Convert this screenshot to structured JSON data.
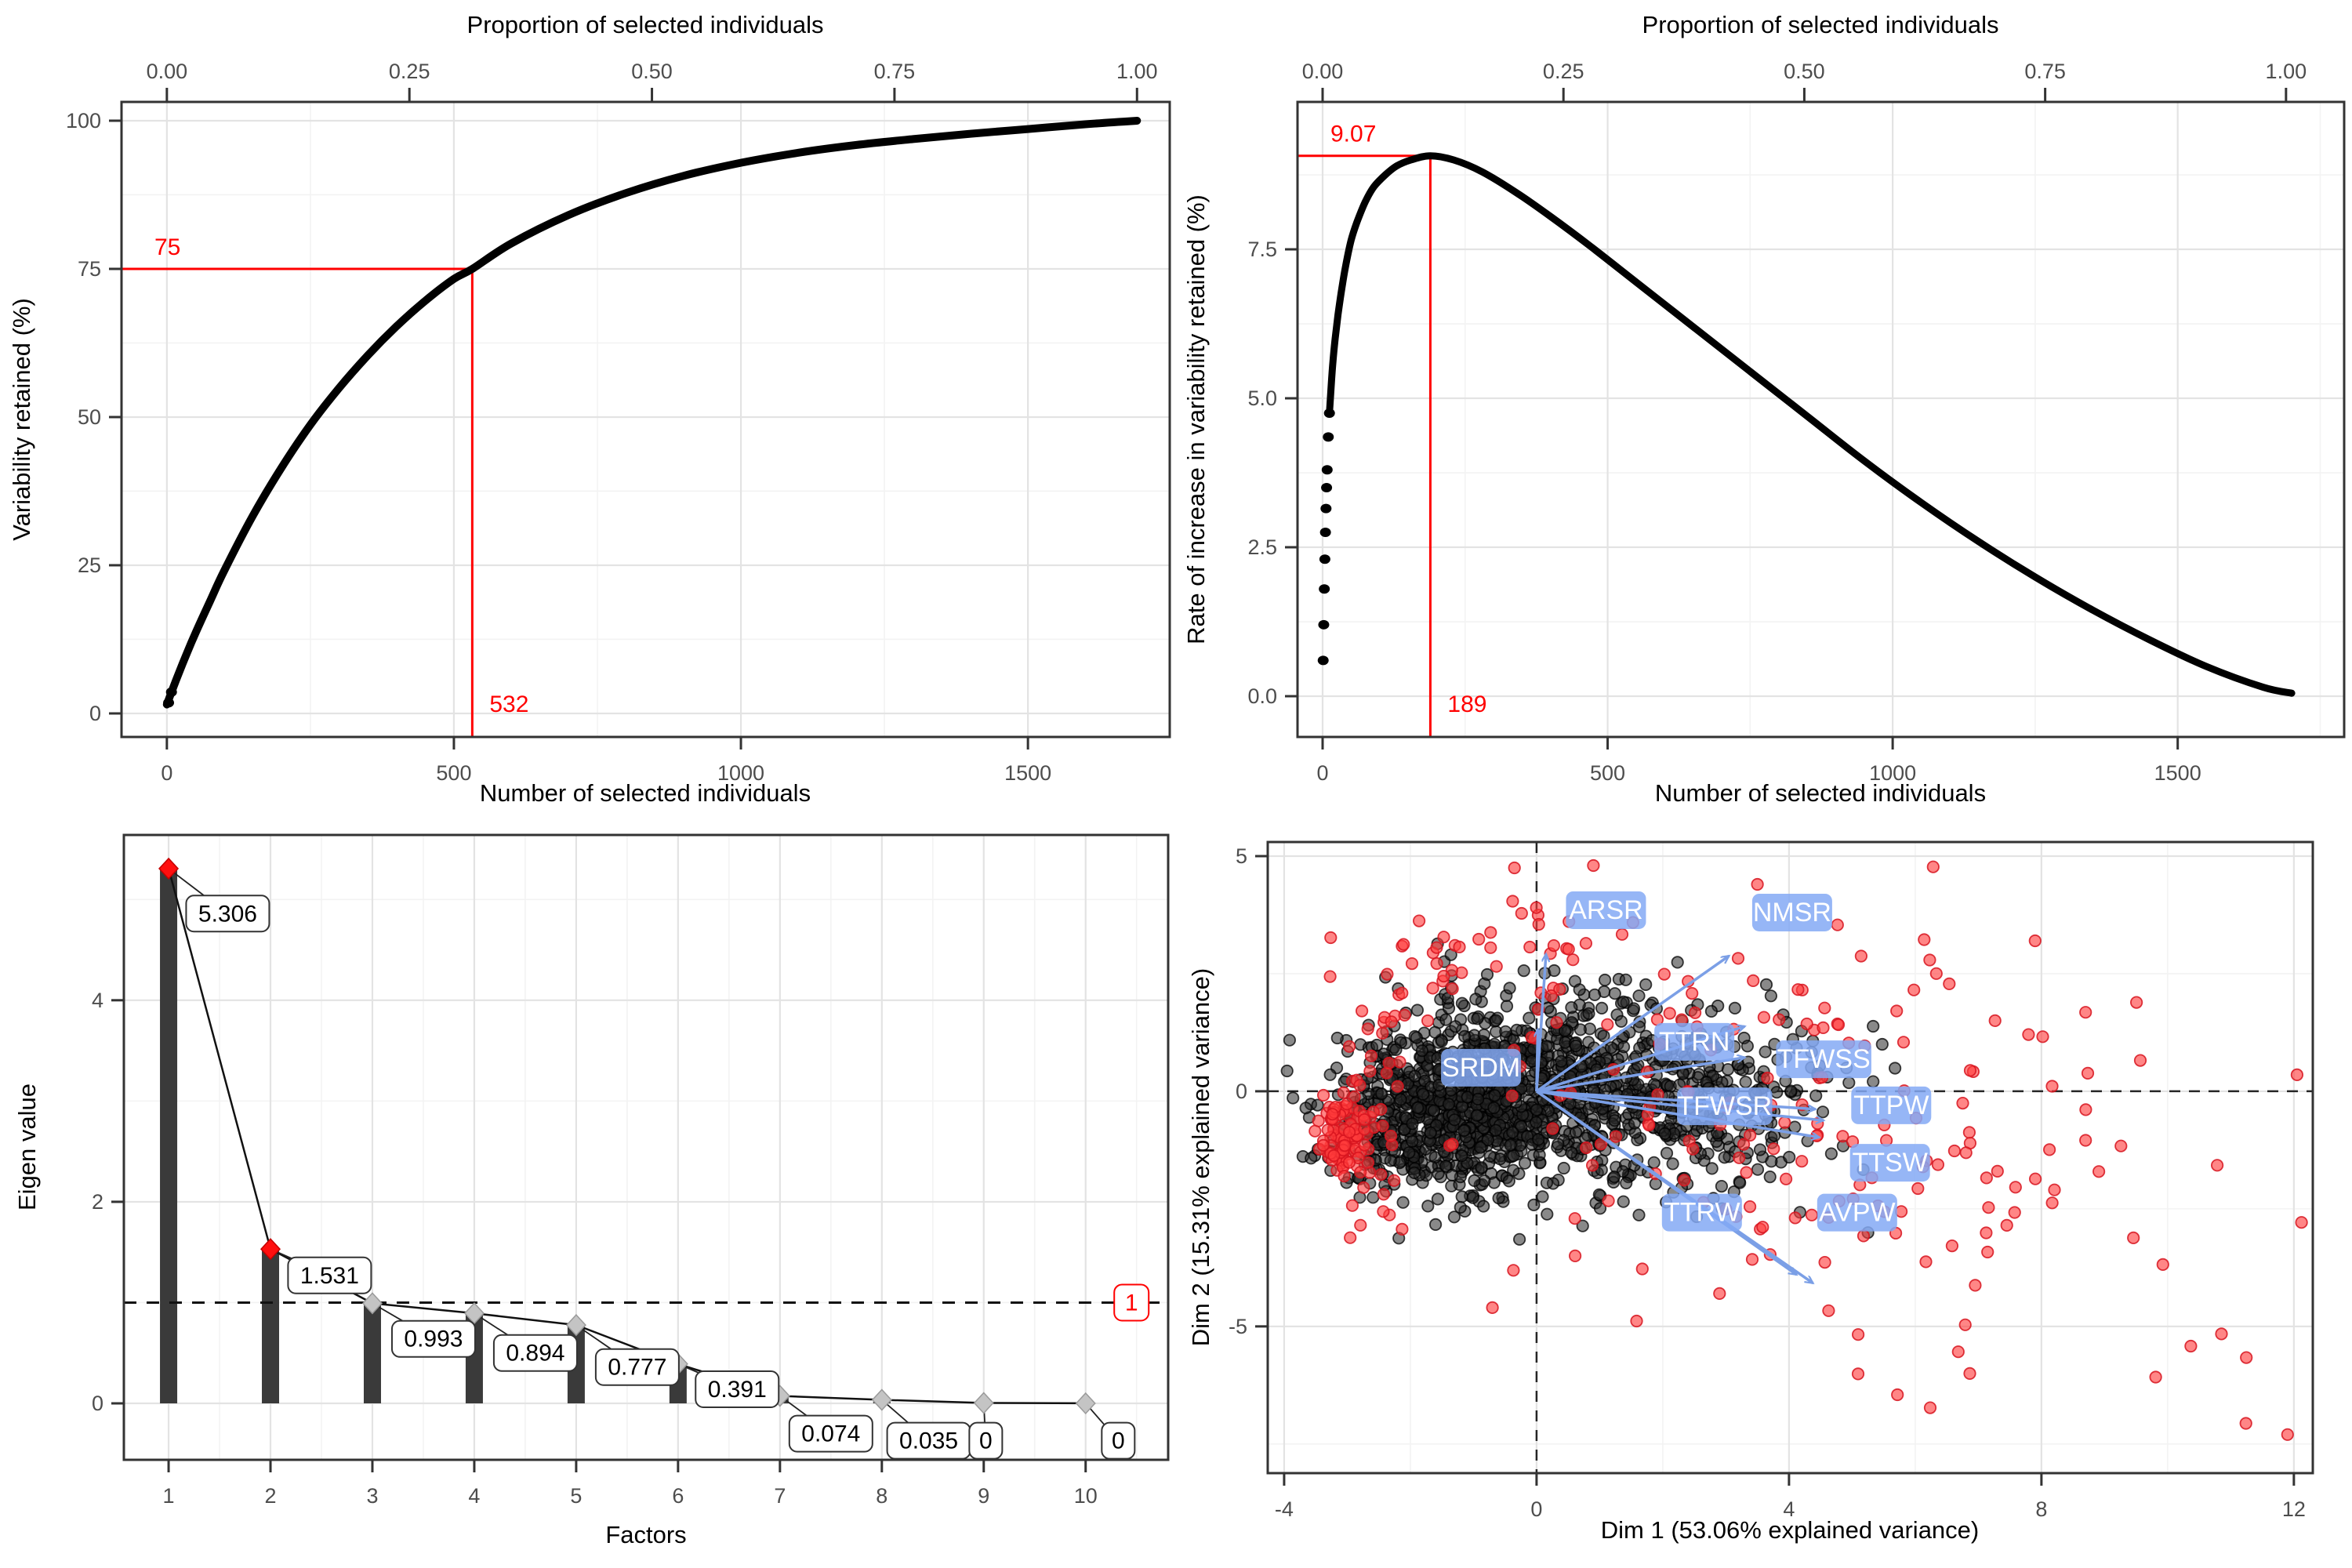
{
  "colors": {
    "annotation_red": "#ff0000",
    "curve_black": "#000000",
    "panel_border": "#333333",
    "grid_major": "#e3e3e3",
    "grid_minor": "#f3f3f3",
    "tick_text": "#4d4d4d",
    "bar_fill": "#3a3a3a",
    "diamond_red": "#ff0f0f",
    "diamond_gray": "#c4c4c4",
    "scree_line": "#111111",
    "biplot_label_bg": "#84a9f5",
    "biplot_label_text": "#ffffff",
    "biplot_arrow": "#7b9fe6",
    "point_black_fill": "rgba(40,40,40,0.55)",
    "point_black_stroke": "rgba(0,0,0,0.75)",
    "point_red_fill": "rgba(255,60,60,0.62)",
    "point_red_stroke": "rgba(215,20,30,0.85)"
  },
  "chart_data": [
    {
      "id": "variability-retained-curve",
      "type": "line",
      "position": "top-left",
      "top_axis_title": "Proportion of selected individuals",
      "xlabel": "Number of selected individuals",
      "ylabel": "Variability retained (%)",
      "total_individuals": 1690,
      "xlim": [
        -79,
        1747
      ],
      "ylim": [
        -3.97,
        103.17
      ],
      "x_ticks": [
        {
          "v": 0,
          "label": "0"
        },
        {
          "v": 500,
          "label": "500"
        },
        {
          "v": 1000,
          "label": "1000"
        },
        {
          "v": 1500,
          "label": "1500"
        }
      ],
      "x_minor": [
        250,
        750,
        1250
      ],
      "top_ticks": [
        {
          "p": 0.0,
          "label": "0.00"
        },
        {
          "p": 0.25,
          "label": "0.25"
        },
        {
          "p": 0.5,
          "label": "0.50"
        },
        {
          "p": 0.75,
          "label": "0.75"
        },
        {
          "p": 1.0,
          "label": "1.00"
        }
      ],
      "y_ticks": [
        {
          "v": 0,
          "label": "0"
        },
        {
          "v": 25,
          "label": "25"
        },
        {
          "v": 50,
          "label": "50"
        },
        {
          "v": 75,
          "label": "75"
        },
        {
          "v": 100,
          "label": "100"
        }
      ],
      "y_minor": [
        12.5,
        37.5,
        62.5,
        87.5
      ],
      "annotation": {
        "x": 532,
        "y": 75,
        "x_label": "532",
        "y_label": "75"
      },
      "stroke_width": 10,
      "points": [
        [
          0,
          1.5
        ],
        [
          10,
          4.1
        ],
        [
          20,
          6.6
        ],
        [
          35,
          10.2
        ],
        [
          50,
          13.6
        ],
        [
          75,
          18.9
        ],
        [
          100,
          24.1
        ],
        [
          150,
          33.4
        ],
        [
          200,
          41.5
        ],
        [
          250,
          48.7
        ],
        [
          300,
          54.9
        ],
        [
          350,
          60.4
        ],
        [
          400,
          65.3
        ],
        [
          450,
          69.6
        ],
        [
          500,
          73.3
        ],
        [
          532,
          75
        ],
        [
          600,
          79.3
        ],
        [
          700,
          84.1
        ],
        [
          800,
          87.8
        ],
        [
          900,
          90.7
        ],
        [
          1000,
          92.9
        ],
        [
          1100,
          94.6
        ],
        [
          1200,
          95.9
        ],
        [
          1300,
          96.9
        ],
        [
          1400,
          97.8
        ],
        [
          1500,
          98.6
        ],
        [
          1600,
          99.4
        ],
        [
          1690,
          100
        ]
      ],
      "start_dots": [
        [
          3,
          1.8
        ],
        [
          8,
          3.6
        ]
      ]
    },
    {
      "id": "rate-of-increase-curve",
      "type": "line",
      "position": "top-right",
      "top_axis_title": "Proportion of selected individuals",
      "xlabel": "Number of selected individuals",
      "ylabel": "Rate of increase in variability retained (%)",
      "total_individuals": 1690,
      "xlim": [
        -44,
        1792
      ],
      "ylim": [
        -0.684,
        9.974
      ],
      "x_ticks": [
        {
          "v": 0,
          "label": "0"
        },
        {
          "v": 500,
          "label": "500"
        },
        {
          "v": 1000,
          "label": "1000"
        },
        {
          "v": 1500,
          "label": "1500"
        }
      ],
      "x_minor": [
        250,
        750,
        1250,
        1750
      ],
      "top_ticks": [
        {
          "p": 0.0,
          "label": "0.00"
        },
        {
          "p": 0.25,
          "label": "0.25"
        },
        {
          "p": 0.5,
          "label": "0.50"
        },
        {
          "p": 0.75,
          "label": "0.75"
        },
        {
          "p": 1.0,
          "label": "1.00"
        }
      ],
      "y_ticks": [
        {
          "v": 0.0,
          "label": "0.0"
        },
        {
          "v": 2.5,
          "label": "2.5"
        },
        {
          "v": 5.0,
          "label": "5.0"
        },
        {
          "v": 7.5,
          "label": "7.5"
        }
      ],
      "y_minor": [
        1.25,
        3.75,
        6.25,
        8.75
      ],
      "annotation": {
        "x": 189,
        "y": 9.07,
        "x_label": "189",
        "y_label": "9.07"
      },
      "stroke_width": 9,
      "points": [
        [
          12,
          4.75
        ],
        [
          15,
          5.2
        ],
        [
          18,
          5.6
        ],
        [
          22,
          6.0
        ],
        [
          27,
          6.4
        ],
        [
          33,
          6.8
        ],
        [
          40,
          7.2
        ],
        [
          50,
          7.65
        ],
        [
          60,
          7.95
        ],
        [
          75,
          8.3
        ],
        [
          90,
          8.55
        ],
        [
          110,
          8.75
        ],
        [
          130,
          8.9
        ],
        [
          155,
          9.0
        ],
        [
          189,
          9.07
        ],
        [
          230,
          9.0
        ],
        [
          280,
          8.8
        ],
        [
          340,
          8.45
        ],
        [
          400,
          8.05
        ],
        [
          470,
          7.55
        ],
        [
          550,
          6.95
        ],
        [
          650,
          6.2
        ],
        [
          750,
          5.45
        ],
        [
          850,
          4.7
        ],
        [
          950,
          3.95
        ],
        [
          1050,
          3.25
        ],
        [
          1150,
          2.6
        ],
        [
          1250,
          2.0
        ],
        [
          1350,
          1.45
        ],
        [
          1450,
          0.95
        ],
        [
          1550,
          0.5
        ],
        [
          1650,
          0.15
        ],
        [
          1700,
          0.05
        ]
      ],
      "start_dots": [
        [
          1,
          0.6
        ],
        [
          2,
          1.2
        ],
        [
          3,
          1.8
        ],
        [
          4,
          2.3
        ],
        [
          5,
          2.75
        ],
        [
          6,
          3.15
        ],
        [
          7,
          3.5
        ],
        [
          8,
          3.8
        ],
        [
          10,
          4.35
        ],
        [
          12,
          4.75
        ]
      ]
    },
    {
      "id": "scree-plot",
      "type": "bar",
      "position": "bottom-left",
      "xlabel": "Factors",
      "ylabel": "Eigen value",
      "categories": [
        "1",
        "2",
        "3",
        "4",
        "5",
        "6",
        "7",
        "8",
        "9",
        "10"
      ],
      "values": [
        5.306,
        1.531,
        0.993,
        0.894,
        0.777,
        0.391,
        0.074,
        0.035,
        0.004,
        0.0005
      ],
      "value_labels": [
        "5.306",
        "1.531",
        "0.993",
        "0.894",
        "0.777",
        "0.391",
        "0.074",
        "0.035",
        "0",
        "0"
      ],
      "label_boxes": [
        {
          "text": "5.306",
          "x": 1.58,
          "y": 4.86
        },
        {
          "text": "1.531",
          "x": 2.58,
          "y": 1.27
        },
        {
          "text": "0.993",
          "x": 3.6,
          "y": 0.64
        },
        {
          "text": "0.894",
          "x": 4.6,
          "y": 0.5
        },
        {
          "text": "0.777",
          "x": 5.6,
          "y": 0.36
        },
        {
          "text": "0.391",
          "x": 6.58,
          "y": 0.14
        },
        {
          "text": "0.074",
          "x": 7.5,
          "y": -0.3
        },
        {
          "text": "0.035",
          "x": 8.46,
          "y": -0.37
        },
        {
          "text": "0",
          "x": 9.02,
          "y": -0.37
        },
        {
          "text": "0",
          "x": 10.32,
          "y": -0.37
        }
      ],
      "threshold": {
        "y": 1,
        "label": "1",
        "label_x": 10.45
      },
      "xlim": [
        0.561,
        10.81
      ],
      "ylim": [
        -0.56,
        5.64
      ],
      "x_ticks": [
        {
          "v": 1,
          "label": "1"
        },
        {
          "v": 2,
          "label": "2"
        },
        {
          "v": 3,
          "label": "3"
        },
        {
          "v": 4,
          "label": "4"
        },
        {
          "v": 5,
          "label": "5"
        },
        {
          "v": 6,
          "label": "6"
        },
        {
          "v": 7,
          "label": "7"
        },
        {
          "v": 8,
          "label": "8"
        },
        {
          "v": 9,
          "label": "9"
        },
        {
          "v": 10,
          "label": "10"
        }
      ],
      "x_minor": [
        1.5,
        2.5,
        3.5,
        4.5,
        5.5,
        6.5,
        7.5,
        8.5,
        9.5,
        10.5
      ],
      "y_ticks": [
        {
          "v": 0,
          "label": "0"
        },
        {
          "v": 2,
          "label": "2"
        },
        {
          "v": 4,
          "label": "4"
        }
      ],
      "y_minor": [
        1,
        3,
        5
      ],
      "diamond_red_threshold": 1
    },
    {
      "id": "pca-biplot",
      "type": "scatter",
      "position": "bottom-right",
      "xlabel": "Dim 1 (53.06% explained variance)",
      "ylabel": "Dim 2 (15.31% explained variance)",
      "xlim": [
        -4.26,
        12.3
      ],
      "ylim": [
        -8.12,
        5.3
      ],
      "x_ticks": [
        {
          "v": -4,
          "label": "-4"
        },
        {
          "v": 0,
          "label": "0"
        },
        {
          "v": 4,
          "label": "4"
        },
        {
          "v": 8,
          "label": "8"
        },
        {
          "v": 12,
          "label": "12"
        }
      ],
      "x_minor": [
        -2,
        2,
        6,
        10
      ],
      "y_ticks": [
        {
          "v": 5,
          "label": "5"
        },
        {
          "v": 0,
          "label": "0"
        },
        {
          "v": -5,
          "label": "-5"
        }
      ],
      "y_minor": [
        2.5,
        -2.5,
        -7.5
      ],
      "zero_lines": {
        "x": 0,
        "y": 0
      },
      "arrows": [
        {
          "name": "SRDM",
          "tip_x": 0.02,
          "tip_y": 1.32,
          "label_x": -0.88,
          "label_y": 0.5
        },
        {
          "name": "ARSR",
          "tip_x": 0.15,
          "tip_y": 2.92,
          "label_x": 1.1,
          "label_y": 3.85
        },
        {
          "name": "NMSR",
          "tip_x": 3.05,
          "tip_y": 2.88,
          "label_x": 4.05,
          "label_y": 3.8
        },
        {
          "name": "TTRN",
          "tip_x": 3.3,
          "tip_y": 1.38,
          "label_x": 2.5,
          "label_y": 1.05
        },
        {
          "name": "TFWSS",
          "tip_x": 3.3,
          "tip_y": 0.72,
          "label_x": 4.55,
          "label_y": 0.68
        },
        {
          "name": "TFWSR",
          "tip_x": 4.42,
          "tip_y": -0.38,
          "label_x": 2.98,
          "label_y": -0.32
        },
        {
          "name": "TTPW",
          "tip_x": 4.55,
          "tip_y": -0.62,
          "label_x": 5.62,
          "label_y": -0.3
        },
        {
          "name": "TTSW",
          "tip_x": 4.48,
          "tip_y": -0.98,
          "label_x": 5.6,
          "label_y": -1.52
        },
        {
          "name": "TTRW",
          "tip_x": 4.12,
          "tip_y": -3.9,
          "label_x": 2.62,
          "label_y": -2.58
        },
        {
          "name": "AVPW",
          "tip_x": 4.38,
          "tip_y": -4.08,
          "label_x": 5.08,
          "label_y": -2.58
        }
      ],
      "point_clusters": {
        "seed": 42,
        "black": [
          {
            "n": 620,
            "cx": -1.55,
            "cy": -0.5,
            "sx": 0.95,
            "sy": 0.8
          },
          {
            "n": 520,
            "cx": -0.15,
            "cy": 0.15,
            "sx": 1.25,
            "sy": 1.05
          },
          {
            "n": 340,
            "cx": 1.35,
            "cy": -0.05,
            "sx": 1.3,
            "sy": 1.1
          },
          {
            "n": 120,
            "cx": 3.0,
            "cy": -0.2,
            "sx": 1.05,
            "sy": 1.0
          }
        ],
        "red": [
          {
            "n": 85,
            "cx": -3.05,
            "cy": -0.95,
            "sx": 0.18,
            "sy": 0.42
          },
          {
            "n": 45,
            "cx": -2.65,
            "cy": -0.3,
            "sx": 0.45,
            "sy": 1.2
          },
          {
            "n": 55,
            "cx": -0.4,
            "cy": 2.7,
            "sx": 1.35,
            "sy": 0.75
          },
          {
            "n": 135,
            "cx": 4.3,
            "cy": -0.7,
            "sx": 2.6,
            "sy": 1.9
          },
          {
            "n": 30,
            "cx": 7.2,
            "cy": -3.4,
            "sx": 2.4,
            "sy": 1.6
          }
        ],
        "extra_red": [
          [
            11.9,
            -7.3
          ],
          [
            12.05,
            0.35
          ],
          [
            -0.35,
            4.75
          ],
          [
            0.9,
            4.8
          ],
          [
            3.5,
            4.4
          ],
          [
            7.9,
            3.2
          ],
          [
            -0.7,
            -4.6
          ],
          [
            2.9,
            -4.3
          ]
        ]
      }
    }
  ]
}
